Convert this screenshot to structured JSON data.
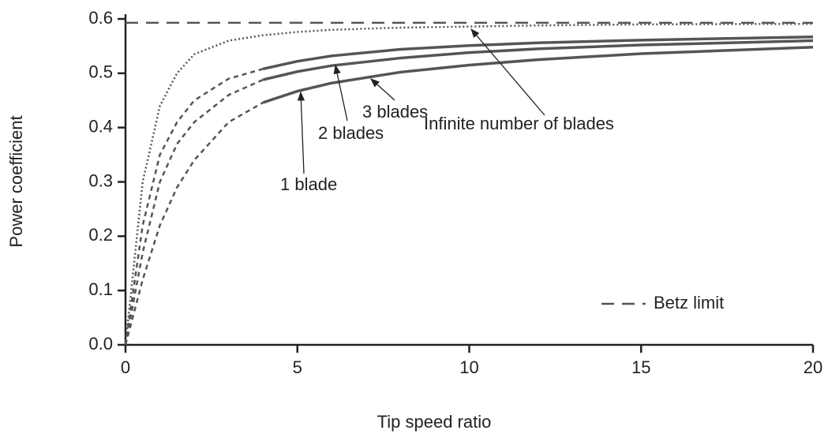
{
  "chart_data": {
    "type": "line",
    "xlabel": "Tip speed ratio",
    "ylabel": "Power coefficient",
    "x": [
      0,
      0.5,
      1,
      1.5,
      2,
      3,
      4,
      5,
      6,
      8,
      10,
      12,
      15,
      20
    ],
    "series": [
      {
        "name": "Infinite number of blades",
        "color": "#555555",
        "style": "dotted",
        "values": [
          0,
          0.3,
          0.44,
          0.5,
          0.535,
          0.56,
          0.57,
          0.576,
          0.58,
          0.584,
          0.586,
          0.588,
          0.59,
          0.591
        ]
      },
      {
        "name": "3 blades",
        "color": "#555555",
        "style": "dashed_then_solid",
        "solid_from_x": 4,
        "values": [
          0,
          0.22,
          0.35,
          0.41,
          0.45,
          0.49,
          0.508,
          0.522,
          0.532,
          0.544,
          0.551,
          0.556,
          0.561,
          0.567
        ]
      },
      {
        "name": "2 blades",
        "color": "#555555",
        "style": "dashed_then_solid",
        "solid_from_x": 4,
        "values": [
          0,
          0.17,
          0.3,
          0.37,
          0.41,
          0.46,
          0.488,
          0.503,
          0.514,
          0.528,
          0.538,
          0.545,
          0.552,
          0.56
        ]
      },
      {
        "name": "1 blade",
        "color": "#555555",
        "style": "dashed_then_solid",
        "solid_from_x": 4,
        "values": [
          0,
          0.12,
          0.22,
          0.29,
          0.34,
          0.41,
          0.446,
          0.467,
          0.482,
          0.502,
          0.515,
          0.525,
          0.536,
          0.548
        ]
      }
    ],
    "reference_line": {
      "name": "Betz limit",
      "value": 0.593,
      "color": "#555555",
      "style": "dashed"
    },
    "legend": "lower right",
    "xlim": [
      0,
      20
    ],
    "xticks": [
      0,
      5,
      10,
      15,
      20
    ],
    "ylim": [
      0,
      0.6
    ],
    "yticks": [
      {
        "value": 0,
        "label": "0.0"
      },
      0.1,
      0.2,
      0.3,
      0.4,
      0.5,
      0.6
    ],
    "grid": false
  }
}
